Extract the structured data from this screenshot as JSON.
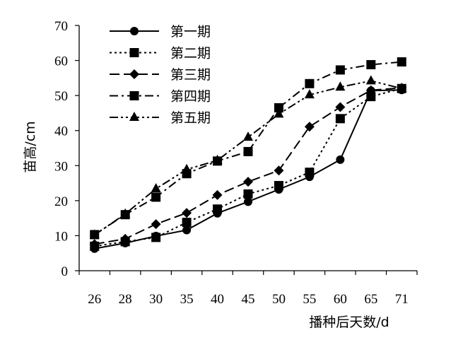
{
  "chart_data": {
    "type": "line",
    "title": "",
    "xlabel": "播种后天数/d",
    "ylabel": "苗高/cm",
    "categories": [
      "26",
      "28",
      "30",
      "35",
      "40",
      "45",
      "50",
      "55",
      "60",
      "65",
      "71"
    ],
    "ylim": [
      0,
      70
    ],
    "yticks": [
      0,
      10,
      20,
      30,
      40,
      50,
      60,
      70
    ],
    "grid": false,
    "legend_position": "top-left",
    "series": [
      {
        "name": "第一期",
        "marker": "circle",
        "dash": "solid",
        "values": [
          6.3,
          7.9,
          9.9,
          11.6,
          16.4,
          19.7,
          23.2,
          26.8,
          31.7,
          51.4,
          51.6
        ]
      },
      {
        "name": "第二期",
        "marker": "square",
        "dash": "dotted",
        "values": [
          7.0,
          8.3,
          9.5,
          13.8,
          17.6,
          21.9,
          24.3,
          28.1,
          43.4,
          49.7,
          52.0
        ]
      },
      {
        "name": "第三期",
        "marker": "diamond",
        "dash": "dashed",
        "values": [
          7.6,
          9.1,
          13.3,
          16.5,
          21.6,
          25.4,
          28.6,
          41.1,
          46.7,
          51.5,
          52.2
        ]
      },
      {
        "name": "第四期",
        "marker": "square",
        "dash": "dashdot",
        "values": [
          10.3,
          16.0,
          21.0,
          27.7,
          31.3,
          34.0,
          46.5,
          53.4,
          57.3,
          58.8,
          59.6
        ]
      },
      {
        "name": "第五期",
        "marker": "triangle",
        "dash": "dashdotdot",
        "values": [
          10.2,
          16.2,
          23.4,
          28.9,
          31.5,
          38.1,
          44.7,
          50.2,
          52.4,
          54.2,
          52.0
        ]
      }
    ]
  }
}
